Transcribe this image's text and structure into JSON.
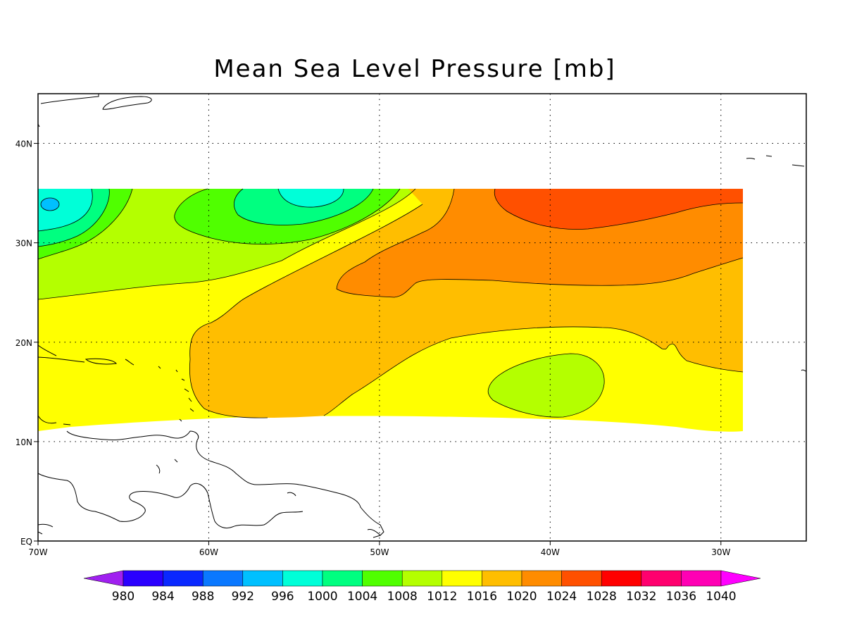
{
  "title": "Mean Sea Level Pressure [mb]",
  "map": {
    "lon_range": [
      -70,
      -25
    ],
    "lat_range": [
      0,
      45
    ],
    "lon_ticks": [
      {
        "value": -70,
        "label": "70W"
      },
      {
        "value": -60,
        "label": "60W"
      },
      {
        "value": -50,
        "label": "50W"
      },
      {
        "value": -40,
        "label": "40W"
      },
      {
        "value": -30,
        "label": "30W"
      }
    ],
    "lat_ticks": [
      {
        "value": 0,
        "label": "EQ"
      },
      {
        "value": 10,
        "label": "10N"
      },
      {
        "value": 20,
        "label": "20N"
      },
      {
        "value": 30,
        "label": "30N"
      },
      {
        "value": 40,
        "label": "40N"
      }
    ],
    "grid": true,
    "units": "mb"
  },
  "colorbar": {
    "levels": [
      "980",
      "984",
      "988",
      "992",
      "996",
      "1000",
      "1004",
      "1008",
      "1012",
      "1016",
      "1020",
      "1024",
      "1028",
      "1032",
      "1036",
      "1040"
    ],
    "colors": [
      "#a020f0",
      "#2a00ff",
      "#0a28ff",
      "#0a78ff",
      "#00c0ff",
      "#00ffd8",
      "#00ff80",
      "#50ff00",
      "#b4ff00",
      "#ffff00",
      "#ffbe00",
      "#ff8c00",
      "#ff5000",
      "#ff0000",
      "#ff006e",
      "#ff00b4",
      "#ff00ff"
    ]
  },
  "field": {
    "palette": {
      "c1000": "#00ffd8",
      "c1004": "#00ff80",
      "c1008": "#50ff00",
      "c1012": "#b4ff00",
      "c1016": "#ffff00",
      "c1020": "#ffbe00",
      "c1024": "#ff8c00",
      "c1028": "#ff5000",
      "c996": "#00c0ff"
    }
  }
}
